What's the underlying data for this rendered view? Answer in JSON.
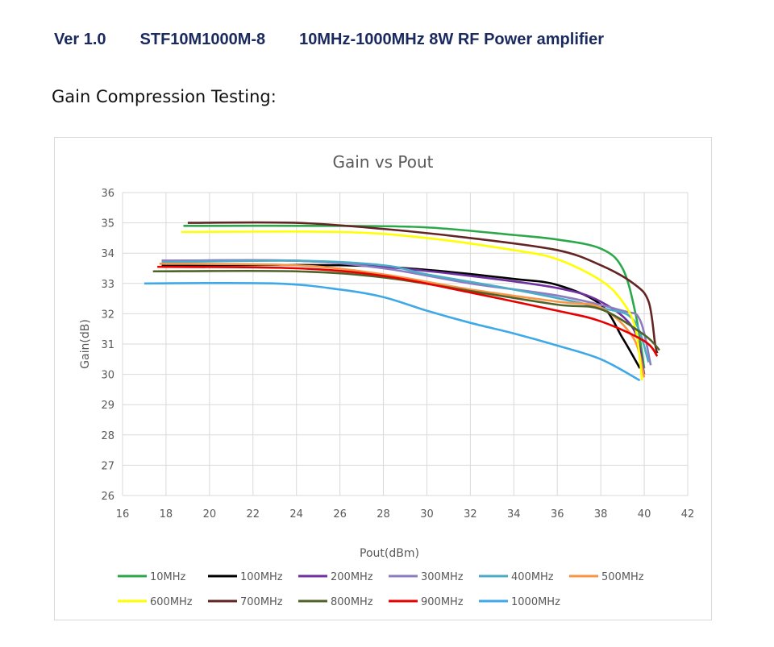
{
  "header": {
    "version": "Ver 1.0",
    "model": "STF10M1000M-8",
    "description": "10MHz-1000MHz 8W RF Power amplifier"
  },
  "section_title": "Gain Compression Testing:",
  "chart_data": {
    "type": "line",
    "title": "Gain vs Pout",
    "xlabel": "Pout(dBm)",
    "ylabel": "Gain(dB)",
    "xlim": [
      16,
      42
    ],
    "ylim": [
      26,
      36
    ],
    "xticks": [
      16,
      18,
      20,
      22,
      24,
      26,
      28,
      30,
      32,
      34,
      36,
      38,
      40,
      42
    ],
    "yticks": [
      26,
      27,
      28,
      29,
      30,
      31,
      32,
      33,
      34,
      35,
      36
    ],
    "grid": true,
    "legend_position": "bottom",
    "series": [
      {
        "name": "10MHz",
        "color": "#2ca84a",
        "points": [
          [
            18.8,
            34.9
          ],
          [
            26,
            34.9
          ],
          [
            30,
            34.85
          ],
          [
            34,
            34.6
          ],
          [
            36,
            34.45
          ],
          [
            38,
            34.15
          ],
          [
            39,
            33.5
          ],
          [
            39.6,
            32
          ],
          [
            40,
            30.2
          ]
        ]
      },
      {
        "name": "100MHz",
        "color": "#000000",
        "points": [
          [
            17.8,
            33.6
          ],
          [
            26,
            33.6
          ],
          [
            30,
            33.45
          ],
          [
            34,
            33.15
          ],
          [
            36,
            32.95
          ],
          [
            38,
            32.3
          ],
          [
            39,
            31.2
          ],
          [
            39.8,
            30.2
          ]
        ]
      },
      {
        "name": "200MHz",
        "color": "#7030a0",
        "points": [
          [
            17.8,
            33.75
          ],
          [
            24,
            33.75
          ],
          [
            28,
            33.55
          ],
          [
            32,
            33.25
          ],
          [
            36,
            32.85
          ],
          [
            38,
            32.4
          ],
          [
            39.5,
            31.5
          ],
          [
            40,
            30.0
          ]
        ]
      },
      {
        "name": "300MHz",
        "color": "#8e7cc3",
        "points": [
          [
            17.8,
            33.75
          ],
          [
            24,
            33.75
          ],
          [
            28,
            33.5
          ],
          [
            32,
            33.0
          ],
          [
            36,
            32.6
          ],
          [
            39,
            32.1
          ],
          [
            39.8,
            31.8
          ],
          [
            40.3,
            30.3
          ]
        ]
      },
      {
        "name": "400MHz",
        "color": "#4bacc6",
        "points": [
          [
            17.8,
            33.7
          ],
          [
            24,
            33.75
          ],
          [
            28,
            33.6
          ],
          [
            30,
            33.3
          ],
          [
            34,
            32.8
          ],
          [
            38,
            32.2
          ],
          [
            39.5,
            31.8
          ],
          [
            40.2,
            30.4
          ]
        ]
      },
      {
        "name": "500MHz",
        "color": "#f79646",
        "points": [
          [
            17.7,
            33.65
          ],
          [
            24,
            33.6
          ],
          [
            28,
            33.3
          ],
          [
            32,
            32.8
          ],
          [
            36,
            32.4
          ],
          [
            38,
            32.2
          ],
          [
            39.5,
            31.2
          ],
          [
            40,
            29.9
          ]
        ]
      },
      {
        "name": "600MHz",
        "color": "#ffff00",
        "points": [
          [
            18.7,
            34.7
          ],
          [
            26,
            34.7
          ],
          [
            30,
            34.5
          ],
          [
            34,
            34.1
          ],
          [
            36,
            33.8
          ],
          [
            38,
            33.1
          ],
          [
            39,
            32.4
          ],
          [
            39.6,
            31.5
          ],
          [
            39.9,
            29.8
          ]
        ]
      },
      {
        "name": "700MHz",
        "color": "#632523",
        "points": [
          [
            19,
            35.0
          ],
          [
            24,
            35.0
          ],
          [
            28,
            34.8
          ],
          [
            32,
            34.5
          ],
          [
            36,
            34.1
          ],
          [
            38,
            33.6
          ],
          [
            39.5,
            33.0
          ],
          [
            40.2,
            32.4
          ],
          [
            40.5,
            31
          ],
          [
            40.6,
            30.7
          ]
        ]
      },
      {
        "name": "800MHz",
        "color": "#4f6228",
        "points": [
          [
            17.4,
            33.4
          ],
          [
            24,
            33.4
          ],
          [
            28,
            33.2
          ],
          [
            32,
            32.75
          ],
          [
            36,
            32.3
          ],
          [
            38,
            32.15
          ],
          [
            40,
            31.3
          ],
          [
            40.7,
            30.8
          ]
        ]
      },
      {
        "name": "900MHz",
        "color": "#e60000",
        "points": [
          [
            17.6,
            33.55
          ],
          [
            24,
            33.5
          ],
          [
            28,
            33.25
          ],
          [
            32,
            32.7
          ],
          [
            36,
            32.1
          ],
          [
            38,
            31.75
          ],
          [
            40,
            31.1
          ],
          [
            40.6,
            30.6
          ]
        ]
      },
      {
        "name": "1000MHz",
        "color": "#3fa9e8",
        "points": [
          [
            17,
            33.0
          ],
          [
            23,
            33.0
          ],
          [
            26,
            32.8
          ],
          [
            28,
            32.55
          ],
          [
            30,
            32.1
          ],
          [
            32,
            31.7
          ],
          [
            34,
            31.35
          ],
          [
            36,
            30.95
          ],
          [
            38,
            30.5
          ],
          [
            39.8,
            29.8
          ]
        ]
      }
    ]
  }
}
